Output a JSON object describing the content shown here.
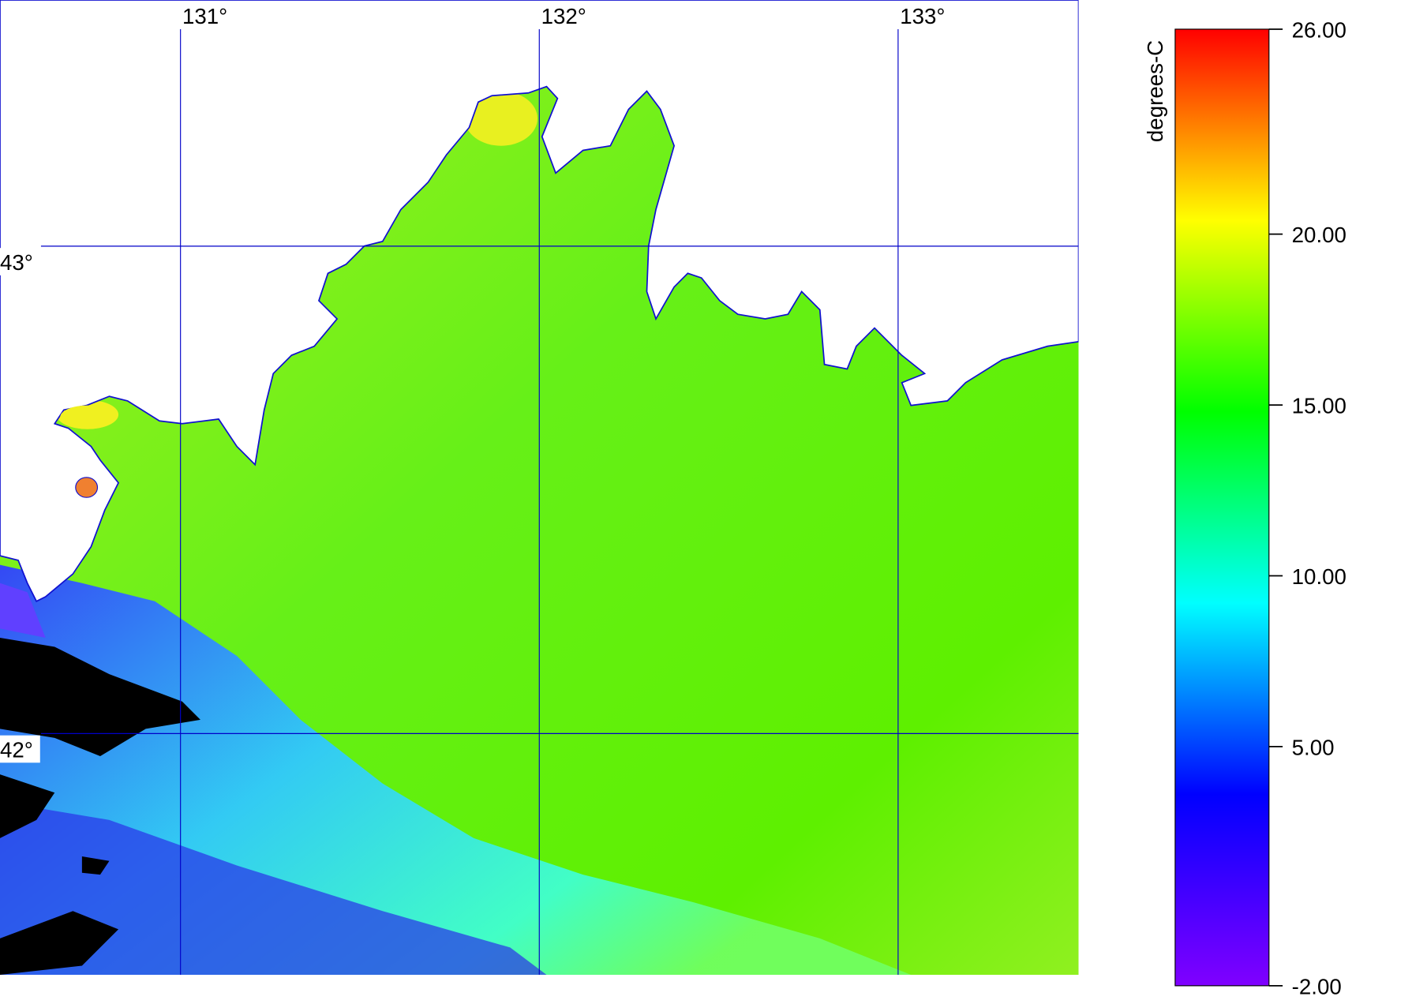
{
  "map": {
    "lonlim": [
      130.497,
      133.503
    ],
    "latlim": [
      41.505,
      43.505
    ],
    "lon_ticks": [
      {
        "value": 131,
        "label": "131°"
      },
      {
        "value": 132,
        "label": "132°"
      },
      {
        "value": 133,
        "label": "133°"
      }
    ],
    "lat_ticks": [
      {
        "value": 43,
        "label": "43°"
      },
      {
        "value": 42,
        "label": "42°"
      }
    ],
    "grid_color": "#0000c8"
  },
  "colorbar": {
    "label": "degrees-C",
    "range": [
      -2,
      26
    ],
    "ticks": [
      {
        "value": -2,
        "label": "-2.00"
      },
      {
        "value": 5,
        "label": "5.00"
      },
      {
        "value": 10,
        "label": "10.00"
      },
      {
        "value": 15,
        "label": "15.00"
      },
      {
        "value": 20,
        "label": "20.00"
      },
      {
        "value": 26,
        "label": "26.00"
      }
    ],
    "colors": [
      "#8000ff",
      "#0000ff",
      "#00ffff",
      "#00ff00",
      "#ffff00",
      "#ff0000"
    ]
  }
}
